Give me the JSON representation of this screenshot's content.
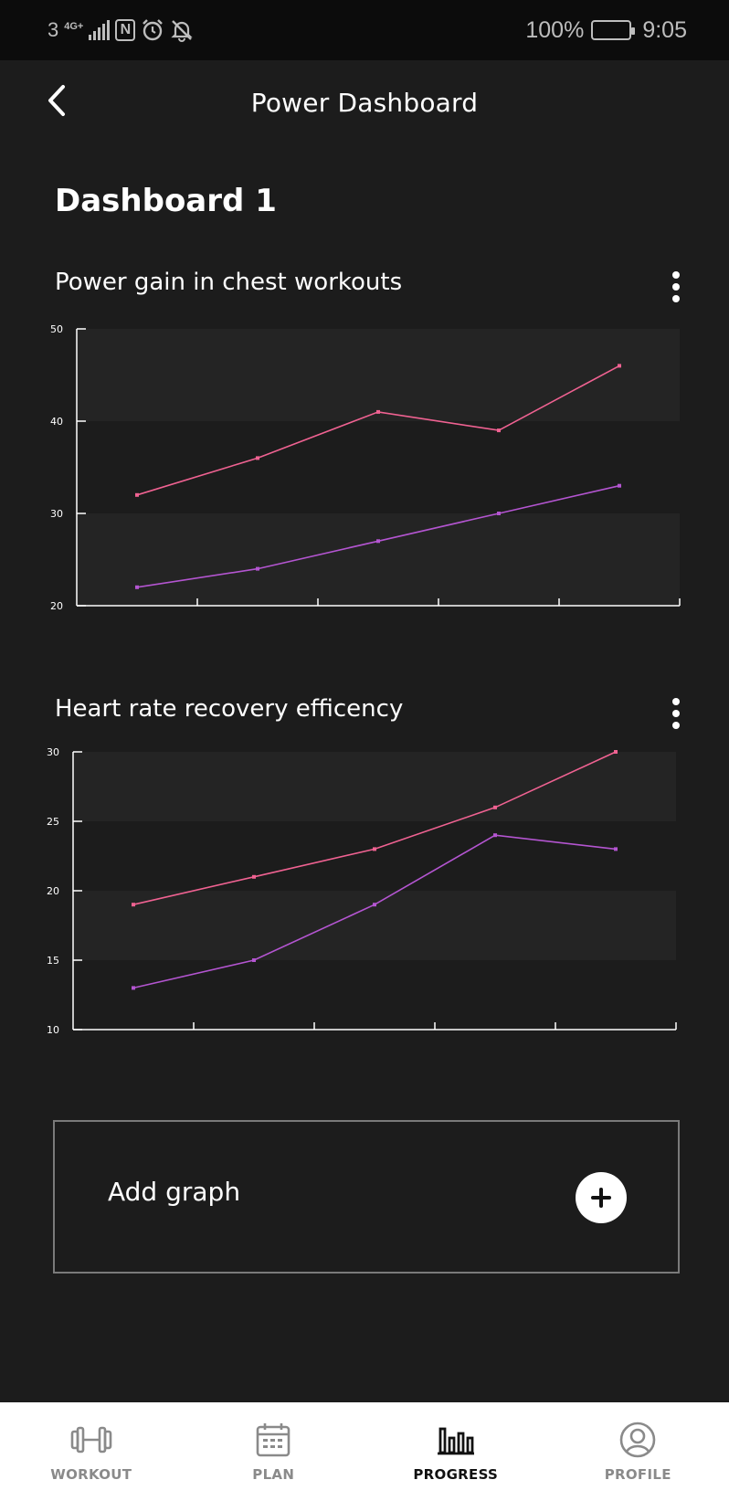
{
  "status_bar": {
    "sim": "3",
    "network": "4G+",
    "battery_pct": "100%",
    "time": "9:05",
    "icons": [
      "signal-icon",
      "nfc-icon",
      "alarm-icon",
      "bell-muted-icon",
      "battery-icon"
    ]
  },
  "app_bar": {
    "title": "Power Dashboard",
    "back_icon": "chevron-left-icon"
  },
  "dashboard": {
    "title": "Dashboard 1"
  },
  "graphs": [
    {
      "title": "Power gain in chest workouts",
      "menu_icon": "kebab-menu-icon"
    },
    {
      "title": "Heart rate recovery efficency",
      "menu_icon": "kebab-menu-icon"
    }
  ],
  "chart_data": [
    {
      "type": "line",
      "title": "Power gain in chest workouts",
      "ylim": [
        20,
        50
      ],
      "y_ticks": [
        "50",
        "40",
        "30",
        "20"
      ],
      "x": [
        1,
        2,
        3,
        4,
        5
      ],
      "xlim": [
        0.5,
        5.5
      ],
      "series": [
        {
          "values": [
            32,
            36,
            41,
            39,
            46
          ],
          "color": "#f06292"
        },
        {
          "values": [
            22,
            24,
            27,
            30,
            33
          ],
          "color": "#b455d1"
        }
      ],
      "grid_bands": true
    },
    {
      "type": "line",
      "title": "Heart rate recovery efficency",
      "ylim": [
        10,
        30
      ],
      "y_ticks": [
        "30",
        "25",
        "20",
        "15",
        "10"
      ],
      "x": [
        1,
        2,
        3,
        4,
        5
      ],
      "xlim": [
        0.5,
        5.5
      ],
      "series": [
        {
          "values": [
            19,
            21,
            23,
            26,
            30
          ],
          "color": "#f06292"
        },
        {
          "values": [
            13,
            15,
            19,
            24,
            23
          ],
          "color": "#b455d1"
        }
      ],
      "grid_bands": true
    }
  ],
  "add_graph": {
    "label": "Add graph",
    "icon": "plus-icon"
  },
  "bottom_nav": {
    "active": "PROGRESS",
    "items": [
      {
        "label": "WORKOUT",
        "icon": "dumbbell-icon"
      },
      {
        "label": "PLAN",
        "icon": "calendar-icon"
      },
      {
        "label": "PROGRESS",
        "icon": "bar-chart-icon"
      },
      {
        "label": "PROFILE",
        "icon": "user-circle-icon"
      }
    ],
    "colors": {
      "active": "#111111",
      "inactive": "#8a8a8a"
    }
  }
}
